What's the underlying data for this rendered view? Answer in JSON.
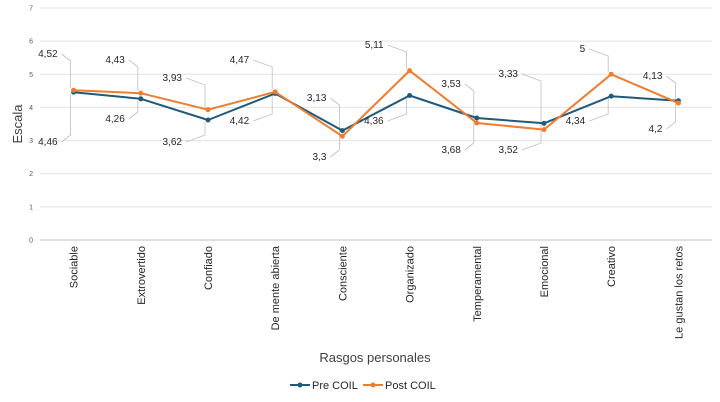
{
  "chart_data": {
    "type": "line",
    "ylabel": "Escala",
    "xlabel": "Rasgos personales",
    "ylim": [
      0,
      7
    ],
    "yticks": [
      "0",
      "1",
      "2",
      "3",
      "4",
      "5",
      "6",
      "7"
    ],
    "grid": true,
    "legend_position": "bottom",
    "categories": [
      "Sociable",
      "Extrovertido",
      "Confiado",
      "De mente abierta",
      "Consciente",
      "Organizado",
      "Temperamental",
      "Emocional",
      "Creativo",
      "Le gustan los retos"
    ],
    "series": [
      {
        "name": "Pre COIL",
        "color": "#1f5a7a",
        "values": [
          4.46,
          4.26,
          3.62,
          4.42,
          3.3,
          4.36,
          3.68,
          3.52,
          4.34,
          4.2
        ],
        "labels": [
          "4,46",
          "4,26",
          "3,62",
          "4,42",
          "3,3",
          "4,36",
          "3,68",
          "3,52",
          "4,34",
          "4,2"
        ]
      },
      {
        "name": "Post COIL",
        "color": "#ed7d31",
        "values": [
          4.52,
          4.43,
          3.93,
          4.47,
          3.13,
          5.11,
          3.53,
          3.33,
          5,
          4.13
        ],
        "labels": [
          "4,52",
          "4,43",
          "3,93",
          "4,47",
          "3,13",
          "5,11",
          "3,53",
          "3,33",
          "5",
          "4,13"
        ]
      }
    ]
  }
}
